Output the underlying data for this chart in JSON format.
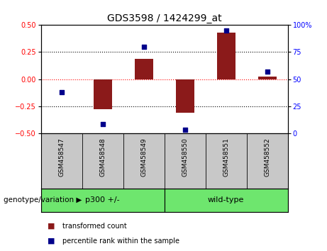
{
  "title": "GDS3598 / 1424299_at",
  "samples": [
    "GSM458547",
    "GSM458548",
    "GSM458549",
    "GSM458550",
    "GSM458551",
    "GSM458552"
  ],
  "red_bars": [
    0.0,
    -0.28,
    0.19,
    -0.31,
    0.43,
    0.02
  ],
  "blue_dots": [
    38,
    8,
    80,
    3,
    95,
    57
  ],
  "group1_label": "p300 +/-",
  "group2_label": "wild-type",
  "group1_indices": [
    0,
    1,
    2
  ],
  "group2_indices": [
    3,
    4,
    5
  ],
  "group_color": "#6EE66E",
  "group_label": "genotype/variation",
  "ylim_left": [
    -0.5,
    0.5
  ],
  "ylim_right": [
    0,
    100
  ],
  "yticks_left": [
    -0.5,
    -0.25,
    0,
    0.25,
    0.5
  ],
  "yticks_right": [
    0,
    25,
    50,
    75,
    100
  ],
  "hline_dotted": [
    0.25,
    -0.25
  ],
  "hline_red": 0.0,
  "bar_color": "#8B1A1A",
  "dot_color": "#00008B",
  "bar_width": 0.45,
  "legend_labels": [
    "transformed count",
    "percentile rank within the sample"
  ],
  "sample_bg": "#C8C8C8",
  "label_fontsize": 6.5,
  "title_fontsize": 10
}
